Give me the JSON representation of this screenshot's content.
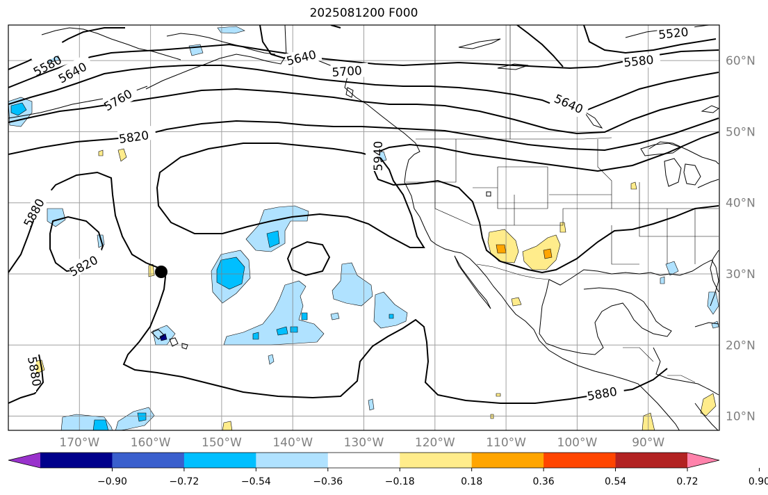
{
  "title": "2025081200 F000",
  "longitude_labels": [
    "170°W",
    "160°W",
    "150°W",
    "140°W",
    "130°W",
    "120°W",
    "110°W",
    "100°W",
    "90°W"
  ],
  "latitude_labels": [
    "60°N",
    "50°N",
    "40°N",
    "30°N",
    "20°N",
    "10°N"
  ],
  "contour_labels": [
    "5520",
    "5580",
    "5640",
    "5700",
    "5760",
    "5820",
    "5880",
    "5940"
  ],
  "colorbar": {
    "tick_labels": [
      "−0.90",
      "−0.72",
      "−0.54",
      "−0.36",
      "−0.18",
      "0.18",
      "0.36",
      "0.54",
      "0.72",
      "0.90"
    ],
    "colors": [
      "#9932cc",
      "#00008b",
      "#3a5fcd",
      "#00bfff",
      "#b0e2ff",
      "#ffffff",
      "#ffec8b",
      "#ffa500",
      "#ff4500",
      "#b22222",
      "#ff82ab"
    ],
    "extend": "both"
  },
  "map": {
    "projection": "plate-carree",
    "lon_range": [
      -180,
      -80
    ],
    "lat_range": [
      8,
      65
    ],
    "grid_lon": [
      -170,
      -160,
      -150,
      -140,
      -130,
      -120,
      -110,
      -100,
      -90
    ],
    "grid_lat": [
      10,
      20,
      30,
      40,
      50,
      60
    ],
    "marker": {
      "name": "center-point",
      "lon": -159,
      "lat": 30.2
    }
  }
}
